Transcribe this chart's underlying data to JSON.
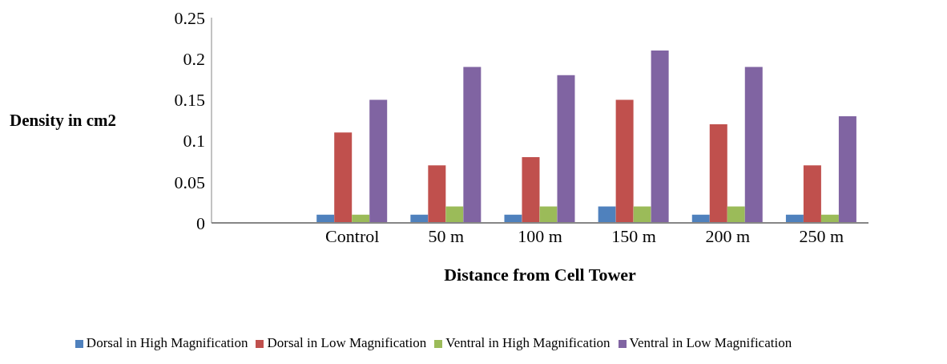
{
  "chart_data": {
    "type": "bar",
    "xlabel": "Distance from Cell Tower",
    "ylabel": "Density in cm2",
    "categories": [
      null,
      "Control",
      "50 m",
      "100 m",
      "150 m",
      "200 m",
      "250 m"
    ],
    "series": [
      {
        "name": "Dorsal in High Magnification",
        "color": "#4f81bd",
        "values": [
          null,
          0.01,
          0.01,
          0.01,
          0.02,
          0.01,
          0.01
        ]
      },
      {
        "name": "Dorsal in Low Magnification",
        "color": "#c0504d",
        "values": [
          null,
          0.11,
          0.07,
          0.08,
          0.15,
          0.12,
          0.07
        ]
      },
      {
        "name": "Ventral in High Magnification",
        "color": "#9bbb59",
        "values": [
          null,
          0.01,
          0.02,
          0.02,
          0.02,
          0.02,
          0.01
        ]
      },
      {
        "name": "Ventral in Low Magnification",
        "color": "#8064a2",
        "values": [
          null,
          0.15,
          0.19,
          0.18,
          0.21,
          0.19,
          0.13
        ]
      }
    ],
    "ylim": [
      0,
      0.25
    ],
    "yticks": [
      0,
      0.05,
      0.1,
      0.15,
      0.2,
      0.25
    ],
    "grid": false,
    "legend": "bottom"
  }
}
